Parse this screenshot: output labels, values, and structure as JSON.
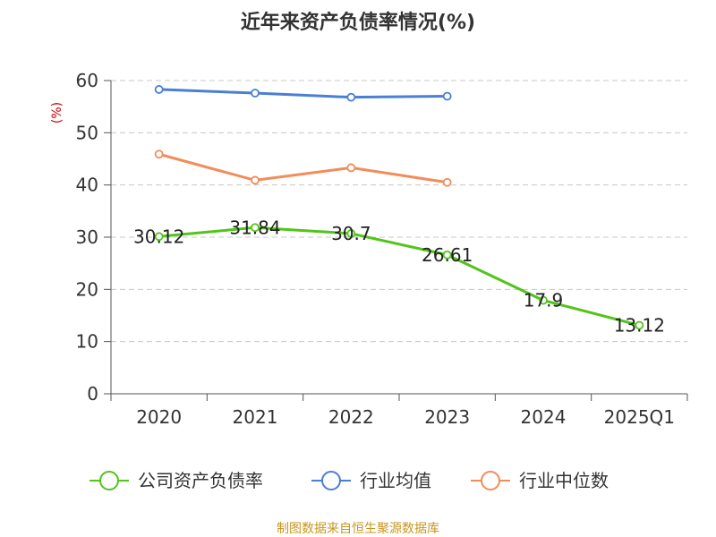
{
  "chart_data": {
    "type": "line",
    "title": "近年来资产负债率情况(%)",
    "ylabel": "(%)",
    "categories": [
      "2020",
      "2021",
      "2022",
      "2023",
      "2024",
      "2025Q1"
    ],
    "ylim": [
      0,
      60
    ],
    "yticks": [
      "0",
      "10",
      "20",
      "30",
      "40",
      "50",
      "60"
    ],
    "grid": true,
    "legend_position": "bottom",
    "series": [
      {
        "name": "公司资产负债率",
        "color": "#52c41a",
        "values": [
          30.12,
          31.84,
          30.7,
          26.61,
          17.9,
          13.12
        ],
        "labels": [
          "30.12",
          "31.84",
          "30.7",
          "26.61",
          "17.9",
          "13.12"
        ]
      },
      {
        "name": "行业均值",
        "color": "#4a7fd6",
        "values": [
          58.3,
          57.6,
          56.8,
          57.0,
          null,
          null
        ]
      },
      {
        "name": "行业中位数",
        "color": "#f28c5a",
        "values": [
          45.9,
          40.9,
          43.3,
          40.5,
          null,
          null
        ]
      }
    ]
  },
  "source": "制图数据来自恒生聚源数据库"
}
